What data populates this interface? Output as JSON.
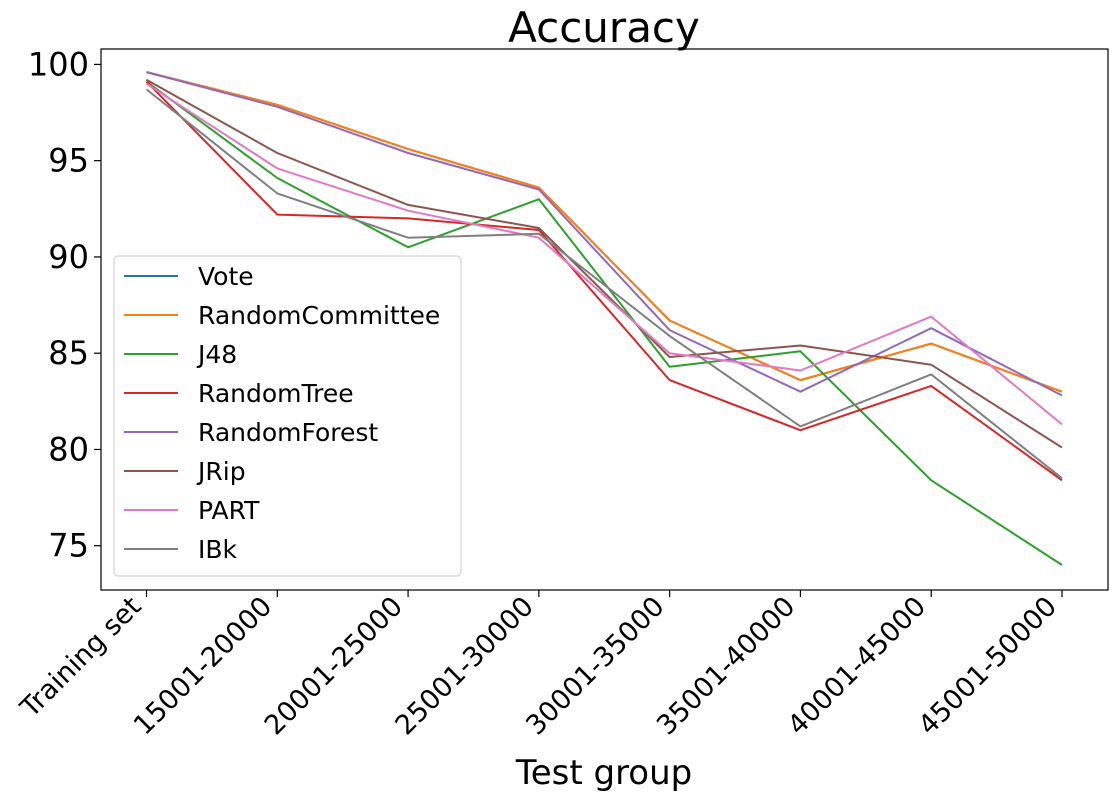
{
  "chart_data": {
    "type": "line",
    "title": "Accuracy",
    "xlabel": "Test group",
    "ylabel": "",
    "ylim": [
      72.7,
      100.8
    ],
    "yticks": [
      75,
      80,
      85,
      90,
      95,
      100
    ],
    "grid": false,
    "legend_position": "center-left",
    "categories": [
      "Training set",
      "15001-20000",
      "20001-25000",
      "25001-30000",
      "30001-35000",
      "35001-40000",
      "40001-45000",
      "45001-50000"
    ],
    "series": [
      {
        "name": "Vote",
        "color": "#1f77b4",
        "values": [
          99.6,
          97.9,
          95.6,
          93.6,
          86.7,
          83.6,
          85.5,
          83.0
        ]
      },
      {
        "name": "RandomCommittee",
        "color": "#ff7f0e",
        "values": [
          99.6,
          97.9,
          95.6,
          93.6,
          86.7,
          83.6,
          85.5,
          83.0
        ]
      },
      {
        "name": "J48",
        "color": "#2ca02c",
        "values": [
          99.1,
          94.1,
          90.5,
          93.0,
          84.3,
          85.1,
          78.4,
          74.0
        ]
      },
      {
        "name": "RandomTree",
        "color": "#d62728",
        "values": [
          99.1,
          92.2,
          92.0,
          91.4,
          83.6,
          81.0,
          83.3,
          78.4
        ]
      },
      {
        "name": "RandomForest",
        "color": "#9467bd",
        "values": [
          99.6,
          97.8,
          95.4,
          93.5,
          86.2,
          83.0,
          86.3,
          82.8
        ]
      },
      {
        "name": "JRip",
        "color": "#8c564b",
        "values": [
          99.2,
          95.4,
          92.7,
          91.5,
          84.8,
          85.4,
          84.4,
          80.1
        ]
      },
      {
        "name": "PART",
        "color": "#e377c2",
        "values": [
          99.0,
          94.6,
          92.4,
          91.0,
          85.0,
          84.1,
          86.9,
          81.3
        ]
      },
      {
        "name": "IBk",
        "color": "#7f7f7f",
        "values": [
          98.7,
          93.3,
          91.0,
          91.2,
          85.9,
          81.2,
          83.9,
          78.5
        ]
      }
    ]
  }
}
